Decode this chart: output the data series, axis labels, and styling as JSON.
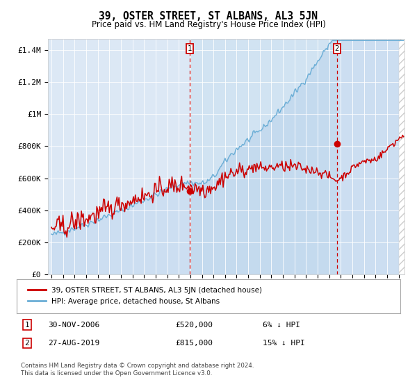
{
  "title": "39, OSTER STREET, ST ALBANS, AL3 5JN",
  "subtitle": "Price paid vs. HM Land Registry's House Price Index (HPI)",
  "title_fontsize": 10.5,
  "subtitle_fontsize": 8.5,
  "plot_bg_color": "#dce8f5",
  "hpi_color": "#6baed6",
  "price_color": "#cc0000",
  "marker1_date": 2006.92,
  "marker1_price": 520000,
  "marker2_date": 2019.65,
  "marker2_price": 815000,
  "marker1_label": "30-NOV-2006",
  "marker1_value": "£520,000",
  "marker1_pct": "6% ↓ HPI",
  "marker2_label": "27-AUG-2019",
  "marker2_value": "£815,000",
  "marker2_pct": "15% ↓ HPI",
  "legend_line1": "39, OSTER STREET, ST ALBANS, AL3 5JN (detached house)",
  "legend_line2": "HPI: Average price, detached house, St Albans",
  "footer1": "Contains HM Land Registry data © Crown copyright and database right 2024.",
  "footer2": "This data is licensed under the Open Government Licence v3.0.",
  "ylabel_ticks": [
    "£0",
    "£200K",
    "£400K",
    "£600K",
    "£800K",
    "£1M",
    "£1.2M",
    "£1.4M"
  ],
  "ytick_values": [
    0,
    200000,
    400000,
    600000,
    800000,
    1000000,
    1200000,
    1400000
  ],
  "ylim": [
    0,
    1470000
  ],
  "xlim_start": 1994.7,
  "xlim_end": 2025.5
}
